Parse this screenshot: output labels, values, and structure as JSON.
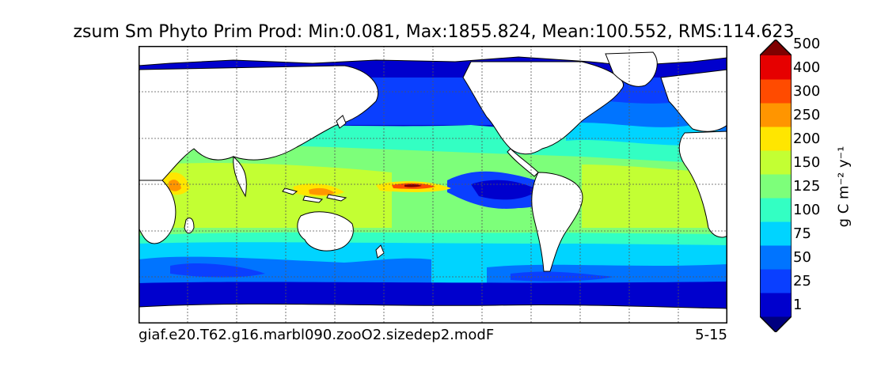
{
  "title": "zsum Sm Phyto Prim Prod: Min:0.081, Max:1855.824, Mean:100.552, RMS:114.623",
  "case_name": "giaf.e20.T62.g16.marbl090.zooO2.sizedep2.modF",
  "period": "5-15",
  "colorbar": {
    "unit_label": "g C m⁻² y⁻¹",
    "levels": [
      "1",
      "25",
      "50",
      "75",
      "100",
      "125",
      "150",
      "200",
      "250",
      "300",
      "400",
      "500"
    ],
    "colors": [
      "#00007f",
      "#0000cd",
      "#0a3fff",
      "#0074ff",
      "#00d4ff",
      "#33ffc3",
      "#7dff7a",
      "#c3ff33",
      "#ffe600",
      "#ff9500",
      "#ff4b00",
      "#e60000",
      "#7f0000"
    ]
  },
  "chart_data": {
    "type": "heatmap",
    "title": "zsum Sm Phyto Prim Prod: Min:0.081, Max:1855.824, Mean:100.552, RMS:114.623",
    "variable": "zsum Sm Phyto Prim Prod",
    "stats": {
      "min": 0.081,
      "max": 1855.824,
      "mean": 100.552,
      "rms": 114.623
    },
    "projection": "cylindrical global map with coastlines and dashed graticule",
    "contour_levels": [
      1,
      25,
      50,
      75,
      100,
      125,
      150,
      200,
      250,
      300,
      400,
      500
    ],
    "colorbar_extends": "both",
    "grid": true
  }
}
